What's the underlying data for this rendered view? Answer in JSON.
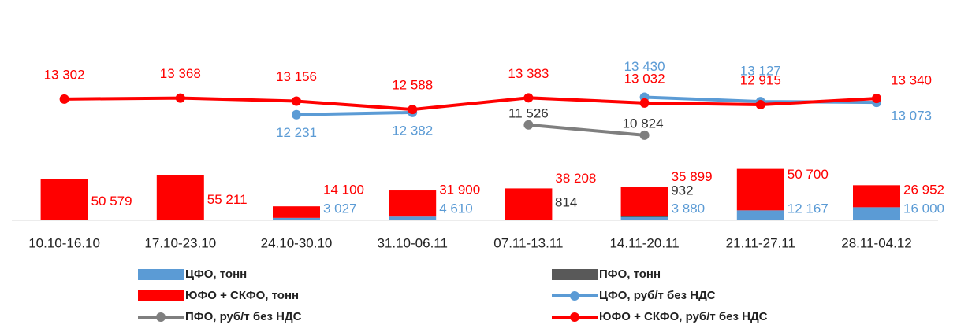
{
  "chart_data": {
    "type": "bar-line",
    "categories": [
      "10.10-16.10",
      "17.10-23.10",
      "24.10-30.10",
      "31.10-06.11",
      "07.11-13.11",
      "14.11-20.11",
      "21.11-27.11",
      "28.11-04.12"
    ],
    "ylim": [
      0,
      250000
    ],
    "y2lim": [
      5000,
      19000
    ],
    "series": [
      {
        "name": "ЦФО, тонн",
        "type": "bar",
        "color": "#5b9bd5",
        "values": [
          null,
          null,
          3027,
          4610,
          null,
          3880,
          12167,
          16000
        ],
        "value_labels": [
          null,
          null,
          "3 027",
          "4 610",
          null,
          "3 880",
          "12 167",
          "16 000"
        ]
      },
      {
        "name": "ПФО, тонн",
        "type": "bar",
        "color": "#595959",
        "values": [
          null,
          null,
          null,
          null,
          814,
          932,
          null,
          null
        ],
        "value_labels": [
          null,
          null,
          null,
          null,
          "814",
          "932",
          null,
          null
        ]
      },
      {
        "name": "ЮФО + СКФО, тонн",
        "type": "bar",
        "color": "#ff0000",
        "values": [
          50579,
          55211,
          14100,
          31900,
          38208,
          35899,
          50700,
          26952
        ],
        "value_labels": [
          "50 579",
          "55 211",
          "14 100",
          "31 900",
          "38 208",
          "35 899",
          "50 700",
          "26 952"
        ]
      },
      {
        "name": "ЦФО, руб/т без НДС",
        "type": "line",
        "axis": "y2",
        "color": "#5b9bd5",
        "values": [
          null,
          null,
          12231,
          12382,
          null,
          13430,
          13127,
          13073
        ],
        "value_labels": [
          null,
          null,
          "12 231",
          "12 382",
          null,
          "13 430",
          "13 127",
          "13 073"
        ]
      },
      {
        "name": "ПФО, руб/т без НДС",
        "type": "line",
        "axis": "y2",
        "color": "#7f7f7f",
        "values": [
          null,
          null,
          null,
          null,
          11526,
          10824,
          null,
          null
        ],
        "value_labels": [
          null,
          null,
          null,
          null,
          "11 526",
          "10 824",
          null,
          null
        ]
      },
      {
        "name": "ЮФО + СКФО, руб/т без НДС",
        "type": "line",
        "axis": "y2",
        "color": "#ff0000",
        "values": [
          13302,
          13368,
          13156,
          12588,
          13383,
          13032,
          12915,
          13340
        ],
        "value_labels": [
          "13 302",
          "13 368",
          "13 156",
          "12 588",
          "13 383",
          "13 032",
          "12 915",
          "13 340"
        ]
      }
    ]
  }
}
